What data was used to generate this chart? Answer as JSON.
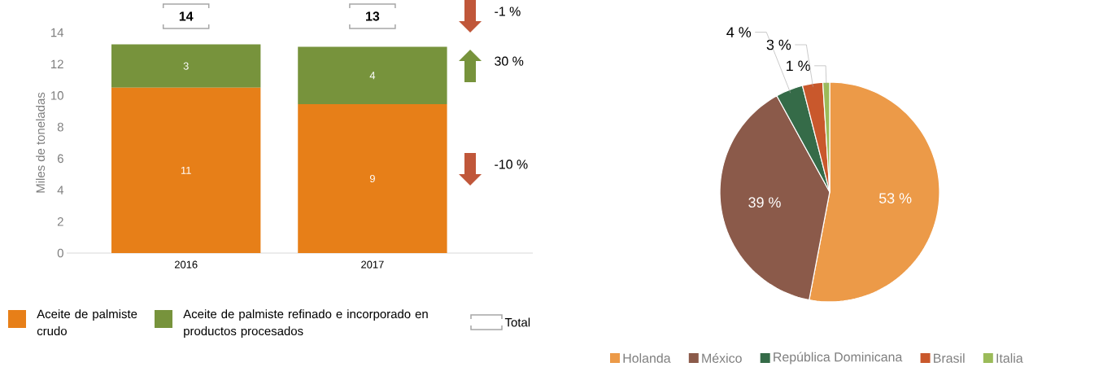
{
  "chart_data": [
    {
      "type": "bar",
      "stacked": true,
      "categories": [
        "2016",
        "2017"
      ],
      "ylabel": "Miles de toneladas",
      "ylim": [
        0,
        14
      ],
      "yticks": [
        0,
        2,
        4,
        6,
        8,
        10,
        12,
        14
      ],
      "legend": "bottom",
      "series": [
        {
          "name": "Aceite de palmiste crudo",
          "color": "#e77f18",
          "values": [
            10.5,
            9.45
          ],
          "value_labels": [
            "11",
            "9"
          ]
        },
        {
          "name": "Aceite de palmiste refinado e incorporado en productos procesados",
          "color": "#77933c",
          "values": [
            2.75,
            3.65
          ],
          "value_labels": [
            "3",
            "4"
          ]
        }
      ],
      "totals": [
        "14",
        "13"
      ],
      "annotations": [
        "-1 %",
        "30 %",
        "-10 %",
        "Total"
      ]
    },
    {
      "type": "pie",
      "categories": [
        "Holanda",
        "México",
        "República Dominicana",
        "Brasil",
        "Italia"
      ],
      "values": [
        53,
        39,
        4,
        3,
        1
      ],
      "colors": [
        "#ec9a48",
        "#8b5a4a",
        "#356b48",
        "#c9582c",
        "#9bbb59"
      ],
      "value_labels": [
        "53 %",
        "39 %",
        "4 %",
        "3 %",
        "1 %"
      ],
      "legend": "bottom"
    }
  ]
}
